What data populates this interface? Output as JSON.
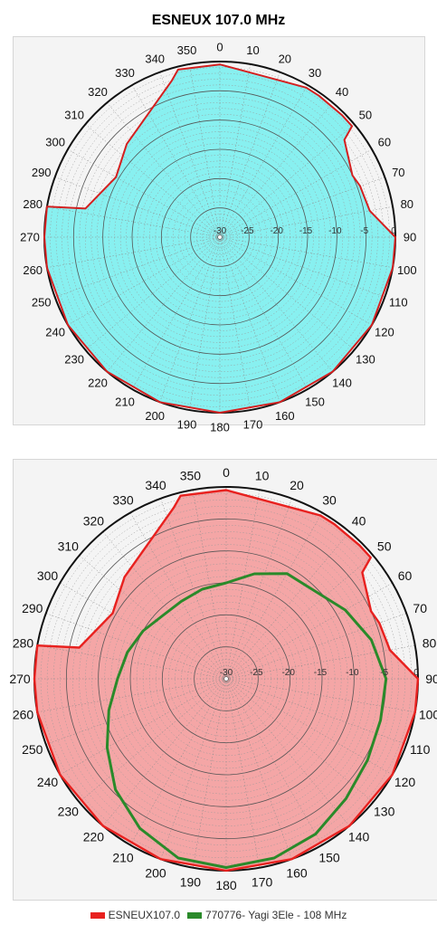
{
  "title": "ESNEUX 107.0 MHz",
  "chart_data": [
    {
      "type": "polar-area",
      "angle_labels": [
        "0",
        "10",
        "20",
        "30",
        "40",
        "50",
        "60",
        "70",
        "80",
        "90",
        "100",
        "110",
        "120",
        "130",
        "140",
        "150",
        "160",
        "170",
        "180",
        "190",
        "200",
        "210",
        "220",
        "230",
        "240",
        "250",
        "260",
        "270",
        "280",
        "290",
        "300",
        "310",
        "320",
        "330",
        "340",
        "350"
      ],
      "radial_ticks": [
        "-30",
        "-25",
        "-20",
        "-15",
        "-10",
        "-5",
        "0"
      ],
      "rlim": [
        -30,
        0
      ],
      "grid": true,
      "series": [
        {
          "name": "ESNEUX107.0",
          "color": "#d42020",
          "fill": "#88f0f0",
          "points": [
            [
              0,
              -0.5
            ],
            [
              30,
              -0.5
            ],
            [
              35,
              -0.5
            ],
            [
              45,
              -0.5
            ],
            [
              50,
              -0.5
            ],
            [
              52,
              -3
            ],
            [
              65,
              -5
            ],
            [
              70,
              -4.5
            ],
            [
              80,
              -4
            ],
            [
              90,
              0
            ],
            [
              100,
              0
            ],
            [
              120,
              0
            ],
            [
              140,
              0
            ],
            [
              160,
              0
            ],
            [
              180,
              0
            ],
            [
              200,
              0
            ],
            [
              220,
              0
            ],
            [
              240,
              0
            ],
            [
              260,
              0
            ],
            [
              270,
              0
            ],
            [
              280,
              0
            ],
            [
              282,
              -6.5
            ],
            [
              300,
              -9.5
            ],
            [
              315,
              -7.5
            ],
            [
              343,
              -2
            ],
            [
              346,
              -0.5
            ]
          ]
        }
      ]
    },
    {
      "type": "polar-area",
      "angle_labels": [
        "0",
        "10",
        "20",
        "30",
        "40",
        "50",
        "60",
        "70",
        "80",
        "90",
        "100",
        "110",
        "120",
        "130",
        "140",
        "150",
        "160",
        "170",
        "180",
        "190",
        "200",
        "210",
        "220",
        "230",
        "240",
        "250",
        "260",
        "270",
        "280",
        "290",
        "300",
        "310",
        "320",
        "330",
        "340",
        "350"
      ],
      "radial_ticks": [
        "-30",
        "-25",
        "-20",
        "-15",
        "-10",
        "-5",
        "0"
      ],
      "rlim": [
        -30,
        0
      ],
      "grid": true,
      "legend": "bottom",
      "series": [
        {
          "name": "ESNEUX107.0",
          "color": "#e8211f",
          "fill": "#f4a6a6",
          "points": [
            [
              0,
              -0.5
            ],
            [
              30,
              -0.5
            ],
            [
              35,
              -0.5
            ],
            [
              45,
              -0.5
            ],
            [
              50,
              -0.5
            ],
            [
              52,
              -3
            ],
            [
              65,
              -5
            ],
            [
              70,
              -4.5
            ],
            [
              80,
              -4
            ],
            [
              90,
              0
            ],
            [
              100,
              0
            ],
            [
              120,
              0
            ],
            [
              140,
              0
            ],
            [
              160,
              0
            ],
            [
              180,
              0
            ],
            [
              200,
              0
            ],
            [
              220,
              0
            ],
            [
              240,
              0
            ],
            [
              260,
              0
            ],
            [
              270,
              0
            ],
            [
              280,
              0
            ],
            [
              282,
              -6.5
            ],
            [
              300,
              -9.5
            ],
            [
              315,
              -7.5
            ],
            [
              343,
              -2
            ],
            [
              346,
              -0.5
            ]
          ]
        },
        {
          "name": "770776- Yagi 3Ele - 108 MHz",
          "color": "#2a8a2a",
          "fill": "none",
          "points": [
            [
              0,
              -15
            ],
            [
              15,
              -13
            ],
            [
              30,
              -11
            ],
            [
              45,
              -10.5
            ],
            [
              60,
              -8.5
            ],
            [
              75,
              -6.5
            ],
            [
              90,
              -5
            ],
            [
              105,
              -5
            ],
            [
              120,
              -4.5
            ],
            [
              135,
              -3.5
            ],
            [
              150,
              -2
            ],
            [
              165,
              -1
            ],
            [
              180,
              -0.5
            ],
            [
              195,
              -1
            ],
            [
              210,
              -3
            ],
            [
              225,
              -5.5
            ],
            [
              240,
              -8.5
            ],
            [
              255,
              -11
            ],
            [
              270,
              -13
            ],
            [
              285,
              -14
            ],
            [
              300,
              -15
            ],
            [
              315,
              -16
            ],
            [
              330,
              -16
            ],
            [
              345,
              -15.5
            ]
          ]
        }
      ]
    }
  ],
  "legend_items": [
    {
      "label": "ESNEUX107.0",
      "color": "#e8211f"
    },
    {
      "label": "770776- Yagi 3Ele - 108 MHz",
      "color": "#2a8a2a"
    }
  ]
}
